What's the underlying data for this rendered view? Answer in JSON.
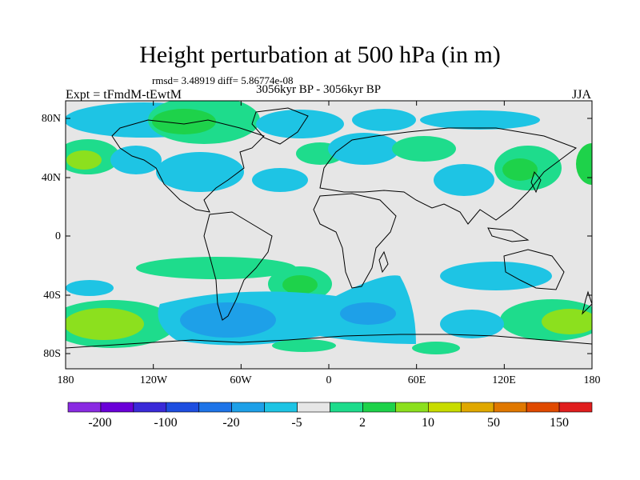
{
  "title": "Height perturbation at 500 hPa (in m)",
  "stats": "rmsd= 3.48919 diff= 5.86774e-08",
  "expt": "Expt = tFmdM-tEwtM",
  "period": "3056kyr BP - 3056kyr BP",
  "season": "JJA",
  "lat_labels": [
    "80N",
    "40N",
    "0",
    "40S",
    "80S"
  ],
  "lon_labels": [
    "180",
    "120W",
    "60W",
    "0",
    "60E",
    "120E",
    "180"
  ],
  "colorbar": {
    "labels": [
      "-200",
      "-100",
      "-20",
      "-5",
      "2",
      "10",
      "50",
      "150"
    ],
    "colors": [
      "#8a2be2",
      "#6a00d8",
      "#3a2ad8",
      "#1e4ee0",
      "#1e74e8",
      "#1ea0e8",
      "#1ec4e4",
      "#e6e6e6",
      "#1edc8c",
      "#1ed24a",
      "#8ce01e",
      "#c8dc00",
      "#e0a800",
      "#e07800",
      "#e04a00",
      "#e01e1e"
    ]
  },
  "map": {
    "background": "#e6e6e6",
    "coastline_color": "#000000"
  }
}
